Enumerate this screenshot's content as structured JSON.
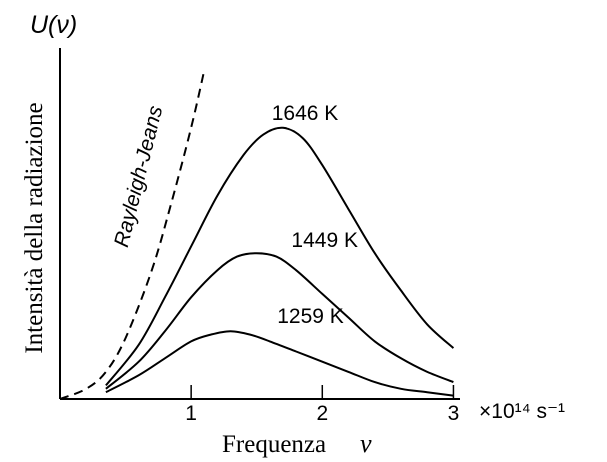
{
  "chart_data": {
    "type": "line",
    "ylabel_symbol": "U(ν)",
    "ylabel": "Intensità della radiazione",
    "xlabel": "Frequenza",
    "xlabel_symbol": "ν",
    "x_unit": "×10¹⁴ s⁻¹",
    "xlim": [
      0,
      3.05
    ],
    "ylim": [
      0,
      1.0
    ],
    "x_ticks": [
      1,
      2,
      3
    ],
    "x_tick_labels": [
      "1",
      "2",
      "3"
    ],
    "grid": false,
    "series": [
      {
        "name": "1646 K",
        "x": [
          0.35,
          0.6,
          0.8,
          1.0,
          1.2,
          1.4,
          1.55,
          1.7,
          1.85,
          2.0,
          2.2,
          2.4,
          2.6,
          2.8,
          3.0
        ],
        "y": [
          0.04,
          0.16,
          0.3,
          0.45,
          0.6,
          0.72,
          0.78,
          0.8,
          0.77,
          0.69,
          0.56,
          0.43,
          0.32,
          0.22,
          0.15
        ]
      },
      {
        "name": "1449 K",
        "x": [
          0.35,
          0.6,
          0.8,
          1.0,
          1.2,
          1.35,
          1.5,
          1.65,
          1.8,
          2.0,
          2.2,
          2.4,
          2.6,
          2.8,
          3.0
        ],
        "y": [
          0.03,
          0.11,
          0.2,
          0.3,
          0.38,
          0.42,
          0.43,
          0.42,
          0.38,
          0.31,
          0.24,
          0.17,
          0.12,
          0.08,
          0.05
        ]
      },
      {
        "name": "1259 K",
        "x": [
          0.35,
          0.6,
          0.8,
          1.0,
          1.15,
          1.3,
          1.45,
          1.6,
          1.8,
          2.0,
          2.2,
          2.4,
          2.6,
          2.8,
          3.0
        ],
        "y": [
          0.02,
          0.07,
          0.12,
          0.17,
          0.19,
          0.2,
          0.19,
          0.17,
          0.14,
          0.11,
          0.08,
          0.05,
          0.03,
          0.02,
          0.01
        ]
      },
      {
        "name": "Rayleigh-Jeans",
        "style": "dashed",
        "x": [
          0.0,
          0.2,
          0.35,
          0.5,
          0.7,
          0.85,
          1.0,
          1.1
        ],
        "y": [
          0.0,
          0.03,
          0.08,
          0.18,
          0.38,
          0.58,
          0.8,
          0.97
        ]
      }
    ]
  }
}
